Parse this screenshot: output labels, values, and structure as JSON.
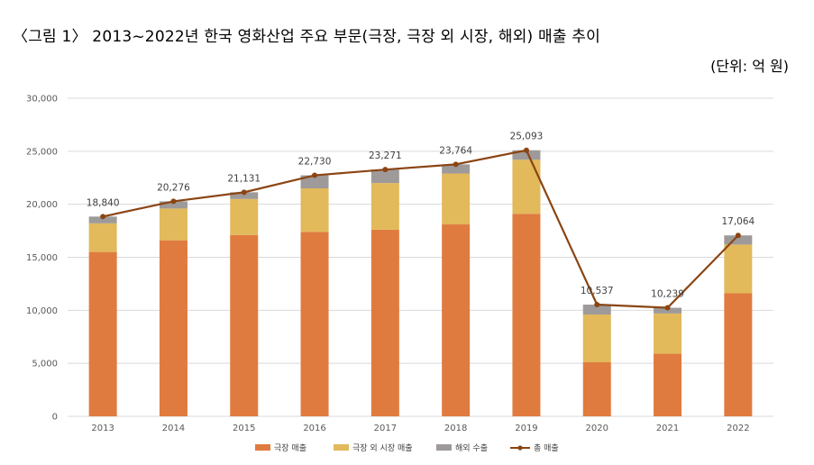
{
  "figure": {
    "title": "〈그림 1〉 2013~2022년 한국 영화산업 주요 부문(극장, 극장 외 시장, 해외) 매출 추이",
    "unit": "(단위: 억 원)"
  },
  "colors": {
    "theater": "#E07B3F",
    "non_theater": "#E2B95B",
    "overseas": "#9E9A99",
    "total_line": "#8B4513",
    "grid": "#D9D9D9"
  },
  "chart_data": {
    "type": "bar",
    "stacked": true,
    "categories": [
      "2013",
      "2014",
      "2015",
      "2016",
      "2017",
      "2018",
      "2019",
      "2020",
      "2021",
      "2022"
    ],
    "series": [
      {
        "name": "극장 매출",
        "type": "bar",
        "values": [
          15500,
          16600,
          17100,
          17400,
          17600,
          18100,
          19100,
          5100,
          5900,
          11600
        ]
      },
      {
        "name": "극장 외 시장 매출",
        "type": "bar",
        "values": [
          2700,
          3000,
          3400,
          4100,
          4400,
          4800,
          5100,
          4500,
          3800,
          4600
        ]
      },
      {
        "name": "해외 수출",
        "type": "bar",
        "values": [
          640,
          676,
          631,
          1230,
          1271,
          864,
          893,
          937,
          539,
          864
        ]
      },
      {
        "name": "총 매출",
        "type": "line",
        "values": [
          18840,
          20276,
          21131,
          22730,
          23271,
          23764,
          25093,
          10537,
          10239,
          17064
        ]
      }
    ],
    "data_labels": [
      "18,840",
      "20,276",
      "21,131",
      "22,730",
      "23,271",
      "23,764",
      "25,093",
      "10,537",
      "10,239",
      "17,064"
    ],
    "y_ticks": [
      "0",
      "5,000",
      "10,000",
      "15,000",
      "20,000",
      "25,000",
      "30,000"
    ],
    "ylim": [
      0,
      30000
    ],
    "grid": true,
    "legend": "bottom",
    "xlabel": "",
    "ylabel": ""
  }
}
